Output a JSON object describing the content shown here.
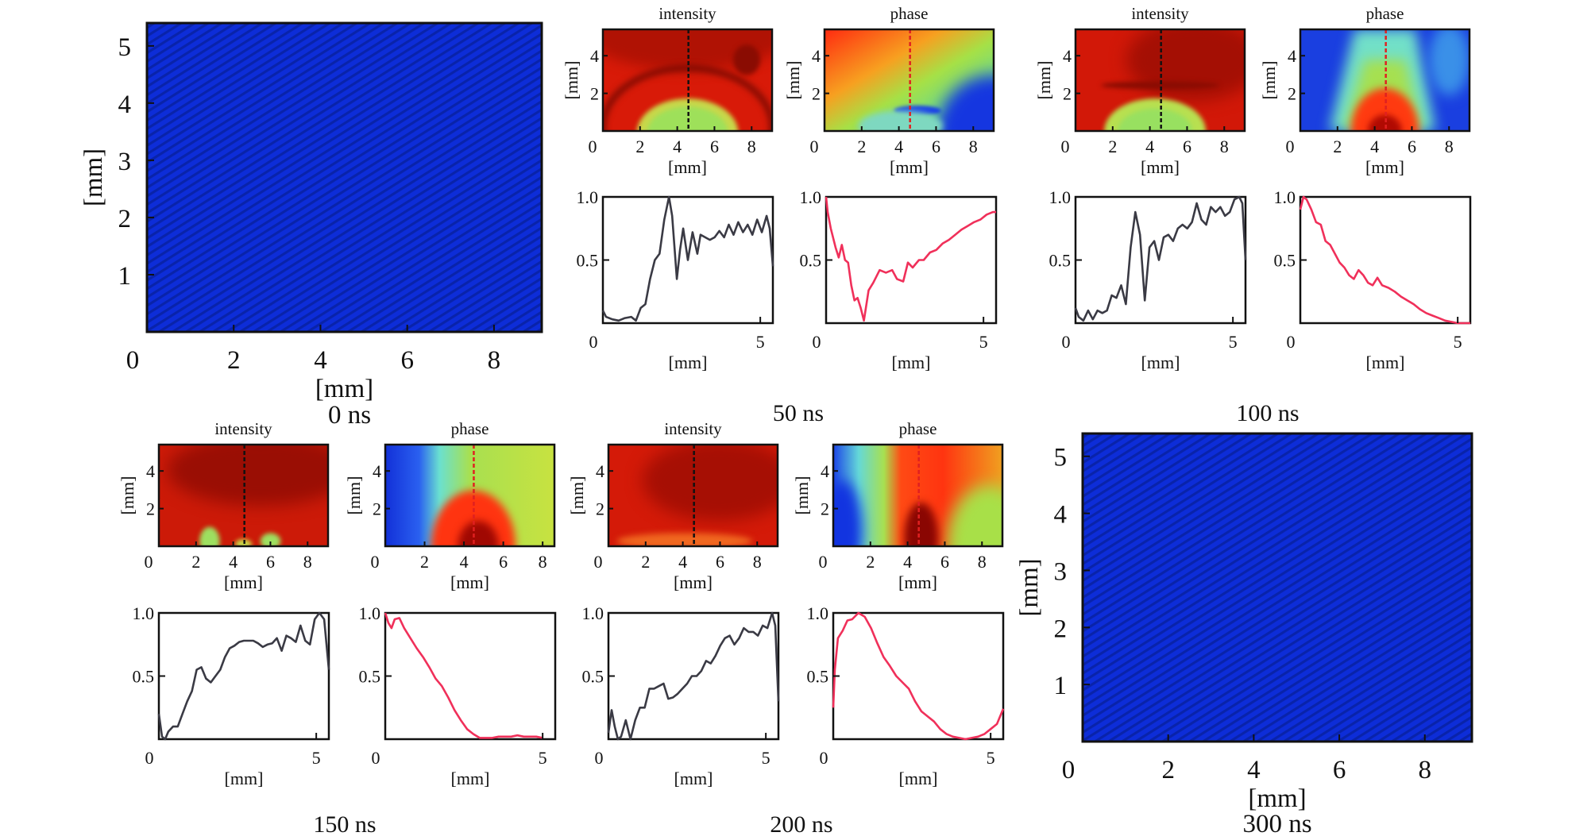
{
  "figure": {
    "axis_unit_label": "[mm]",
    "map_titles": {
      "intensity": "intensity",
      "phase": "phase"
    },
    "colors": {
      "intensity_line": "#3a3a44",
      "phase_line": "#f0305a",
      "cut_line_intensity": "#111111",
      "cut_line_phase": "#e02020",
      "empty_map": "#0c2bd6"
    }
  },
  "chart_data": [
    {
      "id": "0ns",
      "type": "heatmap",
      "title": "0 ns",
      "xlabel": "[mm]",
      "ylabel": "[mm]",
      "xlim": [
        0,
        9.1
      ],
      "ylim": [
        0,
        5.4
      ],
      "xticks": [
        0,
        2,
        4,
        6,
        8
      ],
      "yticks": [
        1,
        2,
        3,
        4,
        5
      ],
      "description": "uniform blue field with fine diagonal fringes"
    },
    {
      "id": "50ns",
      "title": "50 ns",
      "maps": [
        {
          "type": "heatmap",
          "name": "intensity",
          "xlabel": "[mm]",
          "ylabel": "[mm]",
          "xlim": [
            0,
            9.1
          ],
          "ylim": [
            0,
            5.4
          ],
          "xticks": [
            0,
            2,
            4,
            6,
            8
          ],
          "yticks": [
            2,
            4
          ],
          "cut_x": 4.6,
          "description": "red field, green-yellow dome at bottom center (x 2-7 mm, y<1.6 mm), dark ring arc at ~2 mm, ring at top right"
        },
        {
          "type": "heatmap",
          "name": "phase",
          "xlabel": "[mm]",
          "ylabel": "[mm]",
          "xlim": [
            0,
            9.1
          ],
          "ylim": [
            0,
            5.4
          ],
          "xticks": [
            0,
            2,
            4,
            6,
            8
          ],
          "yticks": [
            2,
            4
          ],
          "cut_x": 4.6,
          "description": "red/orange top-left grading to green, blue at bottom right"
        }
      ],
      "profiles": [
        {
          "type": "line",
          "name": "intensity",
          "xlabel": "[mm]",
          "xlim": [
            0,
            5.4
          ],
          "ylim": [
            0,
            1.0
          ],
          "xticks": [
            0,
            5
          ],
          "yticks": [
            0.5,
            1.0
          ],
          "x": [
            0,
            0.1,
            0.3,
            0.5,
            0.7,
            0.9,
            1.05,
            1.2,
            1.35,
            1.5,
            1.65,
            1.8,
            1.95,
            2.1,
            2.2,
            2.35,
            2.45,
            2.55,
            2.7,
            2.85,
            3.0,
            3.1,
            3.25,
            3.4,
            3.55,
            3.7,
            3.85,
            4.0,
            4.15,
            4.3,
            4.45,
            4.6,
            4.75,
            4.9,
            5.05,
            5.2,
            5.3,
            5.4
          ],
          "y": [
            0.1,
            0.05,
            0.03,
            0.02,
            0.04,
            0.05,
            0.02,
            0.12,
            0.15,
            0.35,
            0.5,
            0.55,
            0.82,
            1.0,
            0.85,
            0.35,
            0.58,
            0.75,
            0.5,
            0.72,
            0.55,
            0.7,
            0.68,
            0.66,
            0.68,
            0.73,
            0.68,
            0.78,
            0.7,
            0.8,
            0.72,
            0.78,
            0.7,
            0.82,
            0.72,
            0.85,
            0.75,
            0.45
          ]
        },
        {
          "type": "line",
          "name": "phase",
          "xlabel": "[mm]",
          "xlim": [
            0,
            5.4
          ],
          "ylim": [
            0,
            1.0
          ],
          "xticks": [
            0,
            5
          ],
          "yticks": [
            0.5,
            1.0
          ],
          "x": [
            0,
            0.05,
            0.15,
            0.3,
            0.4,
            0.5,
            0.6,
            0.7,
            0.8,
            0.9,
            1.0,
            1.1,
            1.2,
            1.35,
            1.5,
            1.7,
            1.9,
            2.1,
            2.25,
            2.45,
            2.6,
            2.75,
            2.95,
            3.1,
            3.3,
            3.5,
            3.7,
            3.9,
            4.1,
            4.3,
            4.5,
            4.7,
            4.9,
            5.1,
            5.3,
            5.4
          ],
          "y": [
            1.0,
            0.88,
            0.75,
            0.6,
            0.52,
            0.62,
            0.5,
            0.48,
            0.3,
            0.18,
            0.2,
            0.12,
            0.02,
            0.26,
            0.32,
            0.42,
            0.4,
            0.42,
            0.35,
            0.33,
            0.48,
            0.44,
            0.5,
            0.5,
            0.56,
            0.58,
            0.63,
            0.66,
            0.7,
            0.74,
            0.77,
            0.8,
            0.82,
            0.86,
            0.88,
            0.88
          ]
        }
      ]
    },
    {
      "id": "100ns",
      "title": "100 ns",
      "maps": [
        {
          "type": "heatmap",
          "name": "intensity",
          "xlabel": "[mm]",
          "ylabel": "[mm]",
          "xlim": [
            0,
            9.1
          ],
          "ylim": [
            0,
            5.4
          ],
          "xticks": [
            0,
            2,
            4,
            6,
            8
          ],
          "yticks": [
            2,
            4
          ],
          "cut_x": 4.6,
          "description": "red field, green-yellow speckled dome at bottom center (x 2-7 mm, y<1.6 mm)"
        },
        {
          "type": "heatmap",
          "name": "phase",
          "xlabel": "[mm]",
          "ylabel": "[mm]",
          "xlim": [
            0,
            9.1
          ],
          "ylim": [
            0,
            5.4
          ],
          "xticks": [
            0,
            2,
            4,
            6,
            8
          ],
          "yticks": [
            2,
            4
          ],
          "cut_x": 4.6,
          "description": "blue sides, cyan-green cone widening downward, red core at bottom center"
        }
      ],
      "profiles": [
        {
          "type": "line",
          "name": "intensity",
          "xlabel": "[mm]",
          "xlim": [
            0,
            5.4
          ],
          "ylim": [
            0,
            1.0
          ],
          "xticks": [
            0,
            5
          ],
          "yticks": [
            0.5,
            1.0
          ],
          "x": [
            0,
            0.1,
            0.25,
            0.4,
            0.55,
            0.7,
            0.85,
            1.0,
            1.15,
            1.3,
            1.45,
            1.6,
            1.75,
            1.9,
            2.05,
            2.2,
            2.35,
            2.5,
            2.65,
            2.8,
            2.95,
            3.1,
            3.25,
            3.4,
            3.55,
            3.7,
            3.85,
            4.0,
            4.15,
            4.3,
            4.45,
            4.6,
            4.75,
            4.9,
            5.05,
            5.2,
            5.3,
            5.4
          ],
          "y": [
            0.12,
            0.05,
            0.02,
            0.1,
            0.03,
            0.1,
            0.08,
            0.1,
            0.22,
            0.2,
            0.3,
            0.15,
            0.6,
            0.88,
            0.7,
            0.18,
            0.6,
            0.65,
            0.5,
            0.68,
            0.7,
            0.65,
            0.75,
            0.78,
            0.75,
            0.8,
            0.95,
            0.82,
            0.78,
            0.92,
            0.88,
            0.92,
            0.85,
            0.88,
            0.98,
            1.0,
            0.95,
            0.5
          ]
        },
        {
          "type": "line",
          "name": "phase",
          "xlabel": "[mm]",
          "xlim": [
            0,
            5.4
          ],
          "ylim": [
            0,
            1.0
          ],
          "xticks": [
            0,
            5
          ],
          "yticks": [
            0.5,
            1.0
          ],
          "x": [
            0,
            0.1,
            0.2,
            0.35,
            0.5,
            0.65,
            0.8,
            0.95,
            1.1,
            1.25,
            1.4,
            1.55,
            1.7,
            1.85,
            2.0,
            2.15,
            2.3,
            2.45,
            2.6,
            2.8,
            3.0,
            3.2,
            3.4,
            3.6,
            3.8,
            4.0,
            4.2,
            4.4,
            4.6,
            4.8,
            5.0,
            5.2,
            5.4
          ],
          "y": [
            0.9,
            1.0,
            0.98,
            0.9,
            0.8,
            0.78,
            0.65,
            0.62,
            0.55,
            0.48,
            0.44,
            0.38,
            0.35,
            0.42,
            0.38,
            0.32,
            0.3,
            0.36,
            0.3,
            0.28,
            0.25,
            0.21,
            0.18,
            0.15,
            0.11,
            0.08,
            0.06,
            0.04,
            0.02,
            0.01,
            0.0,
            0.0,
            0.0
          ]
        }
      ]
    },
    {
      "id": "150ns",
      "title": "150 ns",
      "maps": [
        {
          "type": "heatmap",
          "name": "intensity",
          "xlabel": "[mm]",
          "ylabel": "[mm]",
          "xlim": [
            0,
            9.1
          ],
          "ylim": [
            0,
            5.4
          ],
          "xticks": [
            0,
            2,
            4,
            6,
            8
          ],
          "yticks": [
            2,
            4
          ],
          "cut_x": 4.6,
          "description": "dark red field with brighter red bottom region, small green spots at x~3 mm and x~6 mm near bottom"
        },
        {
          "type": "heatmap",
          "name": "phase",
          "xlabel": "[mm]",
          "ylabel": "[mm]",
          "xlim": [
            0,
            8.6
          ],
          "ylim": [
            0,
            5.4
          ],
          "xticks": [
            0,
            2,
            4,
            6,
            8
          ],
          "yticks": [
            2,
            4
          ],
          "cut_x": 4.5,
          "description": "blue left band, cyan-green right, red dome at bottom center (height ~2.6 mm) with dark core"
        }
      ],
      "profiles": [
        {
          "type": "line",
          "name": "intensity",
          "xlabel": "[mm]",
          "xlim": [
            0,
            5.4
          ],
          "ylim": [
            0,
            1.0
          ],
          "xticks": [
            0,
            5
          ],
          "yticks": [
            0.5,
            1.0
          ],
          "x": [
            0,
            0.1,
            0.2,
            0.3,
            0.45,
            0.6,
            0.75,
            0.9,
            1.05,
            1.2,
            1.35,
            1.5,
            1.65,
            1.8,
            1.95,
            2.1,
            2.25,
            2.4,
            2.55,
            2.7,
            2.85,
            3.0,
            3.15,
            3.3,
            3.45,
            3.6,
            3.75,
            3.9,
            4.05,
            4.2,
            4.35,
            4.5,
            4.65,
            4.8,
            4.95,
            5.1,
            5.25,
            5.4
          ],
          "y": [
            0.2,
            0.02,
            0.0,
            0.06,
            0.1,
            0.1,
            0.2,
            0.3,
            0.38,
            0.55,
            0.57,
            0.48,
            0.45,
            0.5,
            0.55,
            0.65,
            0.72,
            0.74,
            0.77,
            0.78,
            0.78,
            0.78,
            0.76,
            0.73,
            0.75,
            0.76,
            0.8,
            0.7,
            0.82,
            0.8,
            0.77,
            0.9,
            0.78,
            0.75,
            0.95,
            1.0,
            0.95,
            0.55
          ]
        },
        {
          "type": "line",
          "name": "phase",
          "xlabel": "[mm]",
          "xlim": [
            0,
            5.4
          ],
          "ylim": [
            0,
            1.0
          ],
          "xticks": [
            0,
            5
          ],
          "yticks": [
            0.5,
            1.0
          ],
          "x": [
            0,
            0.1,
            0.2,
            0.3,
            0.45,
            0.6,
            0.8,
            1.0,
            1.2,
            1.4,
            1.6,
            1.8,
            2.0,
            2.2,
            2.4,
            2.6,
            2.8,
            3.0,
            3.2,
            3.4,
            3.6,
            3.8,
            4.0,
            4.2,
            4.4,
            4.6,
            4.8,
            5.0
          ],
          "y": [
            1.0,
            0.92,
            0.88,
            0.95,
            0.96,
            0.88,
            0.8,
            0.72,
            0.65,
            0.57,
            0.48,
            0.42,
            0.33,
            0.23,
            0.15,
            0.08,
            0.04,
            0.01,
            0.01,
            0.01,
            0.02,
            0.02,
            0.02,
            0.03,
            0.02,
            0.02,
            0.02,
            0.01
          ]
        }
      ]
    },
    {
      "id": "200ns",
      "title": "200 ns",
      "maps": [
        {
          "type": "heatmap",
          "name": "intensity",
          "xlabel": "[mm]",
          "ylabel": "[mm]",
          "xlim": [
            0,
            9.1
          ],
          "ylim": [
            0,
            5.4
          ],
          "xticks": [
            0,
            2,
            4,
            6,
            8
          ],
          "yticks": [
            2,
            4
          ],
          "cut_x": 4.6,
          "description": "red field with dark mottling, faint yellow streaks near bottom"
        },
        {
          "type": "heatmap",
          "name": "phase",
          "xlabel": "[mm]",
          "ylabel": "[mm]",
          "xlim": [
            0,
            9.1
          ],
          "ylim": [
            0,
            5.4
          ],
          "xticks": [
            0,
            2,
            4,
            6,
            8
          ],
          "yticks": [
            2,
            4
          ],
          "cut_x": 4.6,
          "description": "blue bottom-left, green band, broad red center with dark core at bottom, yellow-green lower right"
        }
      ],
      "profiles": [
        {
          "type": "line",
          "name": "intensity",
          "xlabel": "[mm]",
          "xlim": [
            0,
            5.4
          ],
          "ylim": [
            0,
            1.0
          ],
          "xticks": [
            0,
            5
          ],
          "yticks": [
            0.5,
            1.0
          ],
          "x": [
            0,
            0.1,
            0.2,
            0.3,
            0.4,
            0.55,
            0.7,
            0.85,
            1.0,
            1.15,
            1.3,
            1.45,
            1.6,
            1.75,
            1.9,
            2.05,
            2.2,
            2.35,
            2.5,
            2.65,
            2.8,
            2.95,
            3.1,
            3.25,
            3.4,
            3.55,
            3.7,
            3.85,
            4.0,
            4.15,
            4.3,
            4.45,
            4.6,
            4.75,
            4.9,
            5.05,
            5.2,
            5.3,
            5.4
          ],
          "y": [
            0.05,
            0.23,
            0.1,
            0.0,
            0.02,
            0.15,
            0.0,
            0.15,
            0.25,
            0.25,
            0.4,
            0.4,
            0.42,
            0.44,
            0.32,
            0.33,
            0.36,
            0.4,
            0.44,
            0.5,
            0.5,
            0.54,
            0.62,
            0.6,
            0.66,
            0.74,
            0.8,
            0.82,
            0.75,
            0.8,
            0.88,
            0.85,
            0.85,
            0.82,
            0.9,
            0.88,
            1.0,
            0.9,
            0.3
          ]
        },
        {
          "type": "line",
          "name": "phase",
          "xlabel": "[mm]",
          "xlim": [
            0,
            5.4
          ],
          "ylim": [
            0,
            1.0
          ],
          "xticks": [
            0,
            5
          ],
          "yticks": [
            0.5,
            1.0
          ],
          "x": [
            0,
            0.05,
            0.15,
            0.3,
            0.45,
            0.6,
            0.8,
            1.0,
            1.2,
            1.4,
            1.6,
            1.8,
            2.0,
            2.2,
            2.4,
            2.6,
            2.8,
            3.0,
            3.2,
            3.4,
            3.6,
            3.8,
            4.0,
            4.2,
            4.4,
            4.6,
            4.8,
            5.0,
            5.2,
            5.4
          ],
          "y": [
            0.25,
            0.55,
            0.8,
            0.86,
            0.94,
            0.95,
            1.0,
            0.97,
            0.88,
            0.76,
            0.65,
            0.58,
            0.5,
            0.45,
            0.4,
            0.3,
            0.22,
            0.18,
            0.14,
            0.08,
            0.04,
            0.02,
            0.01,
            0.0,
            0.01,
            0.02,
            0.04,
            0.08,
            0.12,
            0.24
          ]
        }
      ]
    },
    {
      "id": "300ns",
      "type": "heatmap",
      "title": "300 ns",
      "xlabel": "[mm]",
      "ylabel": "[mm]",
      "xlim": [
        0,
        9.1
      ],
      "ylim": [
        0,
        5.4
      ],
      "xticks": [
        0,
        2,
        4,
        6,
        8
      ],
      "yticks": [
        1,
        2,
        3,
        4,
        5
      ],
      "description": "uniform blue field with fine diagonal fringes"
    }
  ]
}
